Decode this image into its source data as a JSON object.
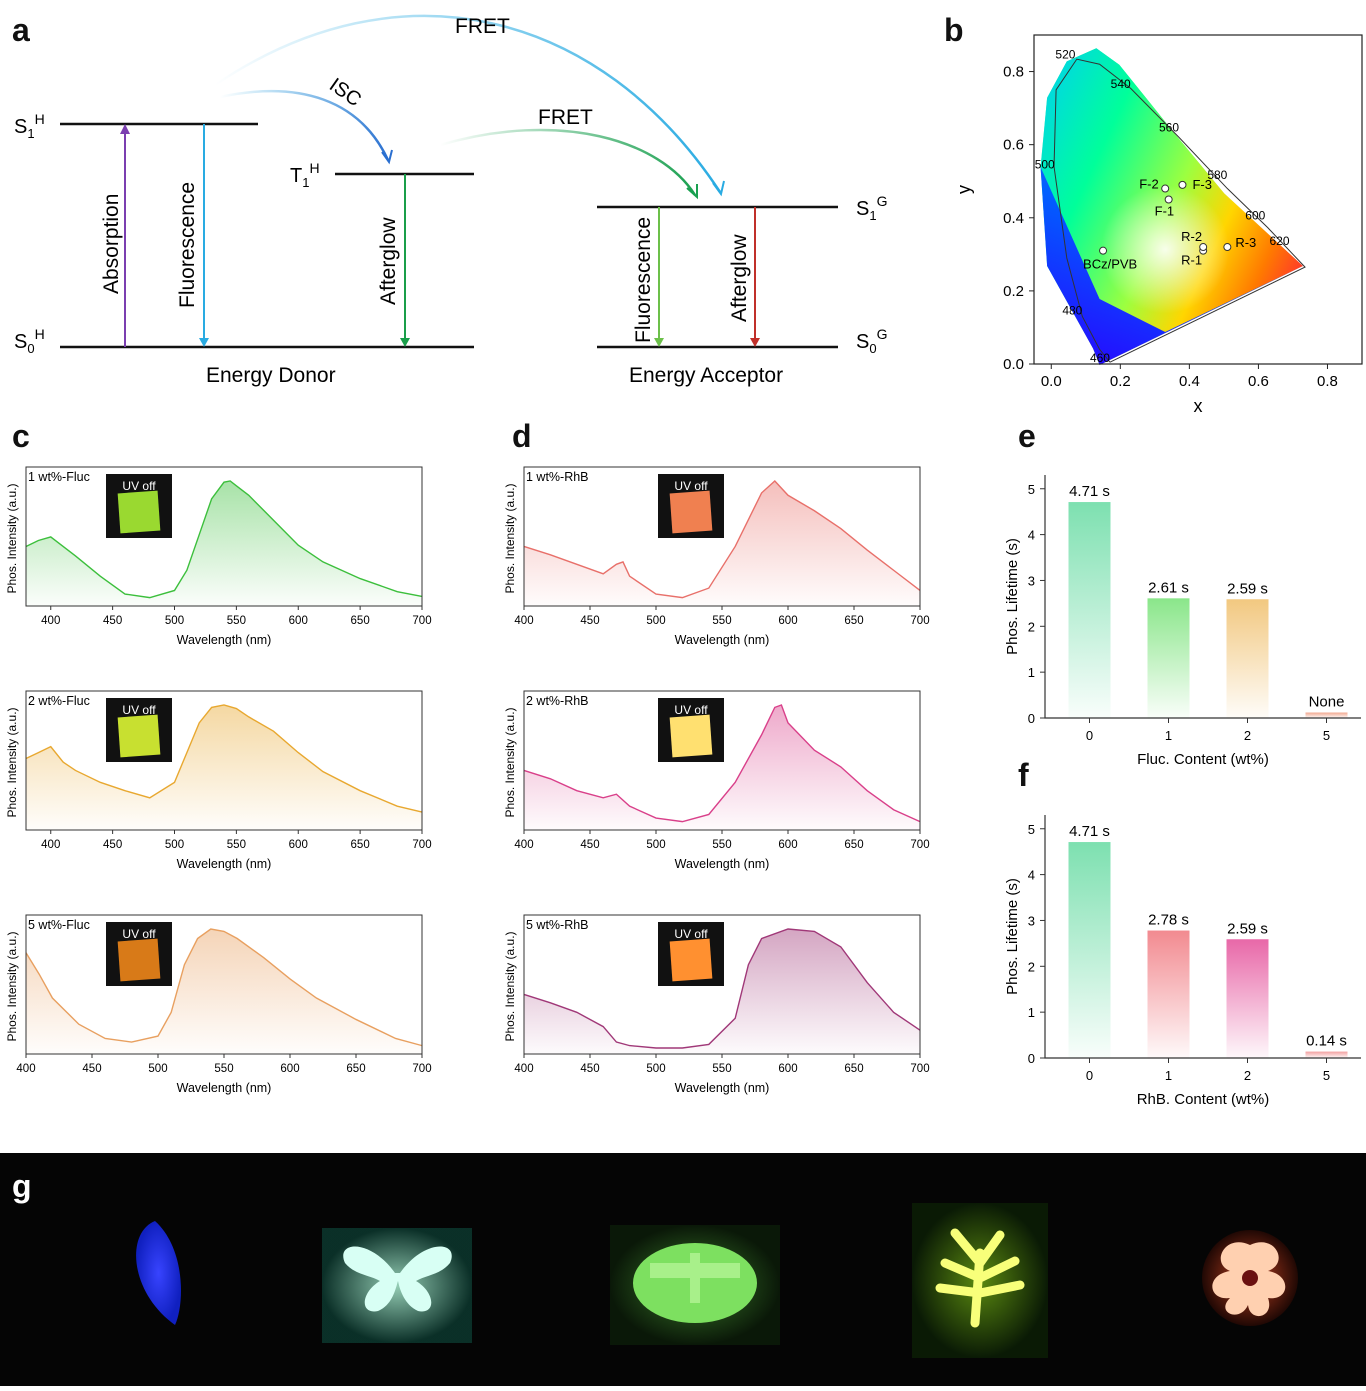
{
  "panels": {
    "a": "a",
    "b": "b",
    "c": "c",
    "d": "d",
    "e": "e",
    "f": "f",
    "g": "g"
  },
  "panel_a": {
    "fret_top": "FRET",
    "isc": "ISC",
    "fret_mid": "FRET",
    "s1h": "S",
    "s1h_sub": "1",
    "s1h_sup": "H",
    "t1h": "T",
    "t1h_sub": "1",
    "t1h_sup": "H",
    "s0h": "S",
    "s0h_sub": "0",
    "s0h_sup": "H",
    "s1g": "S",
    "s1g_sub": "1",
    "s1g_sup": "G",
    "s0g": "S",
    "s0g_sub": "0",
    "s0g_sup": "G",
    "absorption": "Absorption",
    "fluorescence_donor": "Fluorescence",
    "afterglow_donor": "Afterglow",
    "fluorescence_acceptor": "Fluorescence",
    "afterglow_acceptor": "Afterglow",
    "donor": "Energy Donor",
    "acceptor": "Energy Acceptor",
    "colors": {
      "absorption": "#7b3fb0",
      "fluorescence": "#29abe2",
      "afterglow_donor": "#1a9e4a",
      "fluor_acc": "#6cc04a",
      "after_acc": "#c0302a"
    }
  },
  "chart_data": [
    {
      "id": "b",
      "type": "scatter",
      "xlabel": "x",
      "ylabel": "y",
      "xlim": [
        -0.05,
        0.9
      ],
      "ylim": [
        0.0,
        0.9
      ],
      "xticks": [
        "0.0",
        "0.2",
        "0.4",
        "0.6",
        "0.8"
      ],
      "yticks": [
        "0.0",
        "0.2",
        "0.4",
        "0.6",
        "0.8"
      ],
      "wavelength_labels": [
        {
          "t": "460",
          "x": 0.17,
          "y": 0.0
        },
        {
          "t": "480",
          "x": 0.09,
          "y": 0.13
        },
        {
          "t": "500",
          "x": 0.01,
          "y": 0.53
        },
        {
          "t": "520",
          "x": 0.07,
          "y": 0.83
        },
        {
          "t": "540",
          "x": 0.23,
          "y": 0.75
        },
        {
          "t": "560",
          "x": 0.37,
          "y": 0.63
        },
        {
          "t": "580",
          "x": 0.51,
          "y": 0.5
        },
        {
          "t": "600",
          "x": 0.62,
          "y": 0.39
        },
        {
          "t": "620",
          "x": 0.69,
          "y": 0.32
        }
      ],
      "points": [
        {
          "label": "BCz/PVB",
          "x": 0.15,
          "y": 0.31
        },
        {
          "label": "F-1",
          "x": 0.34,
          "y": 0.45
        },
        {
          "label": "F-2",
          "x": 0.33,
          "y": 0.48
        },
        {
          "label": "F-3",
          "x": 0.38,
          "y": 0.49
        },
        {
          "label": "R-1",
          "x": 0.44,
          "y": 0.31
        },
        {
          "label": "R-2",
          "x": 0.44,
          "y": 0.32
        },
        {
          "label": "R-3",
          "x": 0.51,
          "y": 0.32
        }
      ]
    },
    {
      "id": "c1",
      "type": "area",
      "label": "1 wt%-Fluc",
      "inset": "UV off",
      "xlabel": "Wavelength (nm)",
      "ylabel": "Phos. Intensity (a.u.)",
      "xlim": [
        380,
        700
      ],
      "xticks": [
        400,
        450,
        500,
        550,
        600,
        650,
        700
      ],
      "color": "#3cbf3c",
      "ylim": [
        0,
        1
      ],
      "x": [
        380,
        390,
        400,
        410,
        420,
        440,
        460,
        480,
        500,
        510,
        520,
        530,
        540,
        545,
        550,
        560,
        580,
        600,
        620,
        650,
        680,
        700
      ],
      "y": [
        0.45,
        0.5,
        0.53,
        0.45,
        0.37,
        0.2,
        0.05,
        0.02,
        0.08,
        0.25,
        0.55,
        0.85,
        0.99,
        1.0,
        0.96,
        0.88,
        0.67,
        0.46,
        0.32,
        0.18,
        0.07,
        0.03
      ]
    },
    {
      "id": "c2",
      "type": "area",
      "label": "2 wt%-Fluc",
      "inset": "UV off",
      "xlabel": "Wavelength (nm)",
      "ylabel": "Phos. Intensity (a.u.)",
      "xlim": [
        380,
        700
      ],
      "xticks": [
        400,
        450,
        500,
        550,
        600,
        650,
        700
      ],
      "color": "#e8a830",
      "ylim": [
        0,
        1
      ],
      "x": [
        380,
        390,
        400,
        410,
        420,
        440,
        460,
        480,
        500,
        510,
        520,
        530,
        540,
        550,
        560,
        580,
        600,
        620,
        650,
        680,
        700
      ],
      "y": [
        0.55,
        0.6,
        0.65,
        0.52,
        0.45,
        0.35,
        0.28,
        0.22,
        0.35,
        0.6,
        0.85,
        0.98,
        1.0,
        0.97,
        0.9,
        0.78,
        0.6,
        0.44,
        0.28,
        0.15,
        0.1
      ]
    },
    {
      "id": "c3",
      "type": "area",
      "label": "5 wt%-Fluc",
      "inset": "UV off",
      "xlabel": "Wavelength (nm)",
      "ylabel": "Phos. Intensity (a.u.)",
      "xlim": [
        400,
        700
      ],
      "xticks": [
        400,
        450,
        500,
        550,
        600,
        650,
        700
      ],
      "color": "#e8a060",
      "ylim": [
        0,
        1
      ],
      "x": [
        400,
        410,
        420,
        440,
        460,
        480,
        500,
        510,
        520,
        530,
        540,
        550,
        560,
        580,
        600,
        620,
        650,
        680,
        700
      ],
      "y": [
        0.8,
        0.62,
        0.42,
        0.2,
        0.08,
        0.05,
        0.1,
        0.3,
        0.7,
        0.92,
        1.0,
        0.98,
        0.92,
        0.76,
        0.58,
        0.42,
        0.24,
        0.08,
        0.02
      ]
    },
    {
      "id": "d1",
      "type": "area",
      "label": "1 wt%-RhB",
      "inset": "UV off",
      "xlabel": "Wavelength (nm)",
      "ylabel": "Phos. Intensity (a.u.)",
      "xlim": [
        400,
        700
      ],
      "xticks": [
        400,
        450,
        500,
        550,
        600,
        650,
        700
      ],
      "color": "#e8706a",
      "ylim": [
        0,
        1
      ],
      "x": [
        400,
        420,
        440,
        460,
        470,
        475,
        480,
        500,
        520,
        540,
        560,
        580,
        590,
        600,
        620,
        640,
        660,
        680,
        700
      ],
      "y": [
        0.45,
        0.38,
        0.3,
        0.22,
        0.3,
        0.32,
        0.2,
        0.05,
        0.02,
        0.1,
        0.45,
        0.9,
        1.0,
        0.88,
        0.75,
        0.6,
        0.42,
        0.25,
        0.08
      ]
    },
    {
      "id": "d2",
      "type": "area",
      "label": "2 wt%-RhB",
      "inset": "UV off",
      "xlabel": "Wavelength (nm)",
      "ylabel": "Phos. Intensity (a.u.)",
      "xlim": [
        400,
        700
      ],
      "xticks": [
        400,
        450,
        500,
        550,
        600,
        650,
        700
      ],
      "color": "#d9408a",
      "ylim": [
        0,
        1
      ],
      "x": [
        400,
        420,
        440,
        460,
        470,
        480,
        500,
        520,
        540,
        560,
        580,
        590,
        595,
        600,
        620,
        640,
        660,
        680,
        700
      ],
      "y": [
        0.45,
        0.38,
        0.28,
        0.22,
        0.25,
        0.15,
        0.05,
        0.02,
        0.08,
        0.35,
        0.75,
        0.98,
        1.0,
        0.85,
        0.62,
        0.48,
        0.28,
        0.12,
        0.02
      ]
    },
    {
      "id": "d3",
      "type": "area",
      "label": "5 wt%-RhB",
      "inset": "UV off",
      "xlabel": "Wavelength (nm)",
      "ylabel": "Phos. Intensity (a.u.)",
      "xlim": [
        400,
        700
      ],
      "xticks": [
        400,
        450,
        500,
        550,
        600,
        650,
        700
      ],
      "color": "#a03878",
      "ylim": [
        0,
        1
      ],
      "x": [
        400,
        420,
        440,
        460,
        470,
        480,
        500,
        520,
        540,
        560,
        570,
        580,
        600,
        620,
        640,
        660,
        680,
        700
      ],
      "y": [
        0.45,
        0.38,
        0.3,
        0.18,
        0.05,
        0.02,
        0.0,
        0.0,
        0.03,
        0.25,
        0.7,
        0.92,
        1.0,
        0.98,
        0.85,
        0.55,
        0.3,
        0.15
      ]
    },
    {
      "id": "e",
      "type": "bar",
      "xlabel": "Fluc. Content (wt%)",
      "ylabel": "Phos. Lifetime (s)",
      "ylim": [
        0,
        5.3
      ],
      "yticks": [
        0,
        1,
        2,
        3,
        4,
        5
      ],
      "categories": [
        "0",
        "1",
        "2",
        "5"
      ],
      "values": [
        4.71,
        2.61,
        2.59,
        0.12
      ],
      "labels": [
        "4.71 s",
        "2.61 s",
        "2.59 s",
        "None"
      ],
      "colors": [
        "#7de0b0",
        "#8ae68a",
        "#f2c880",
        "#f2a890"
      ]
    },
    {
      "id": "f",
      "type": "bar",
      "xlabel": "RhB. Content (wt%)",
      "ylabel": "Phos. Lifetime (s)",
      "ylim": [
        0,
        5.3
      ],
      "yticks": [
        0,
        1,
        2,
        3,
        4,
        5
      ],
      "categories": [
        "0",
        "1",
        "2",
        "5"
      ],
      "values": [
        4.71,
        2.78,
        2.59,
        0.14
      ],
      "labels": [
        "4.71 s",
        "2.78 s",
        "2.59 s",
        "0.14 s"
      ],
      "colors": [
        "#7de0b0",
        "#f28a90",
        "#e868a8",
        "#f2a0a0"
      ]
    }
  ],
  "panel_g": {
    "photos": [
      {
        "name": "leaf",
        "color": "#2030ff"
      },
      {
        "name": "butterfly",
        "color": "#a8ffe8"
      },
      {
        "name": "dragonfly",
        "color": "#9cf27a"
      },
      {
        "name": "plant",
        "color": "#f8ff80"
      },
      {
        "name": "flower",
        "color": "#ffc8a0"
      }
    ]
  }
}
